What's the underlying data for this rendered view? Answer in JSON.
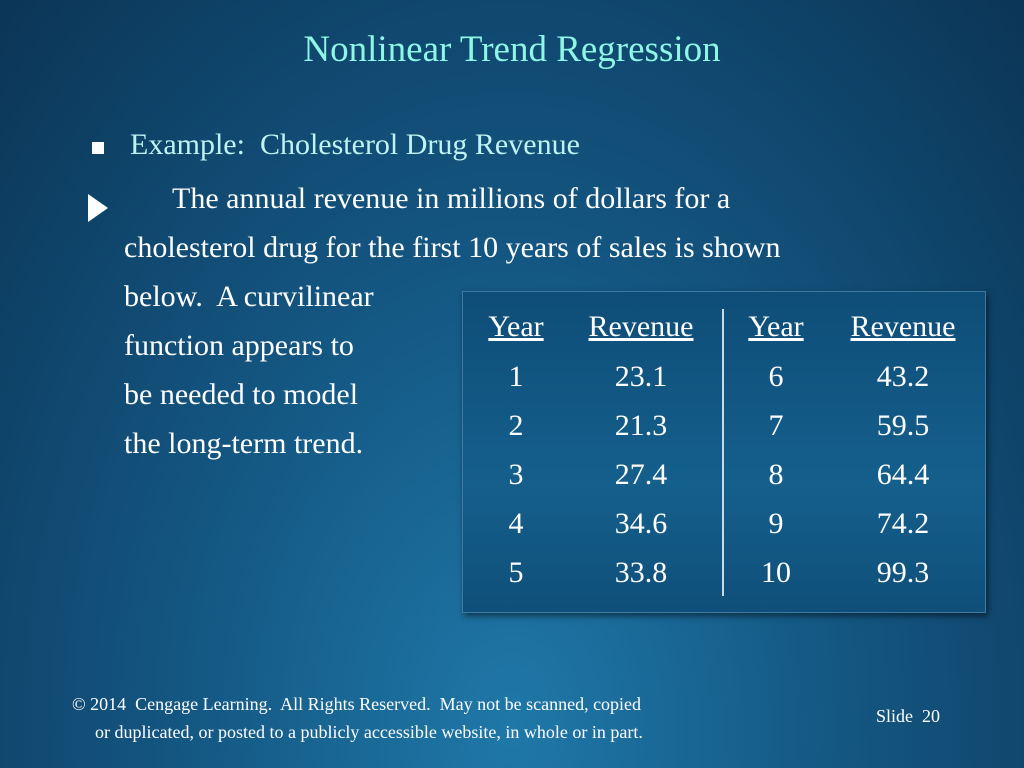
{
  "title": "Nonlinear Trend Regression",
  "bullet": "Example:  Cholesterol Drug Revenue",
  "paragraph": [
    "The annual revenue in millions of dollars for a",
    "cholesterol drug for the first 10 years of sales is shown",
    "below.  A curvilinear",
    "function appears to",
    "be needed to model",
    "the long-term trend."
  ],
  "table": {
    "headers": [
      "Year",
      "Revenue",
      "Year",
      "Revenue"
    ],
    "rows": [
      [
        1,
        23.1,
        6,
        43.2
      ],
      [
        2,
        21.3,
        7,
        59.5
      ],
      [
        3,
        27.4,
        8,
        64.4
      ],
      [
        4,
        34.6,
        9,
        74.2
      ],
      [
        5,
        33.8,
        10,
        99.3
      ]
    ]
  },
  "footer": {
    "copyright": [
      "© 2014  Cengage Learning.  All Rights Reserved.  May not be scanned, copied",
      "or duplicated, or posted to a publicly accessible website, in whole or in part."
    ],
    "slide": "Slide  20"
  }
}
